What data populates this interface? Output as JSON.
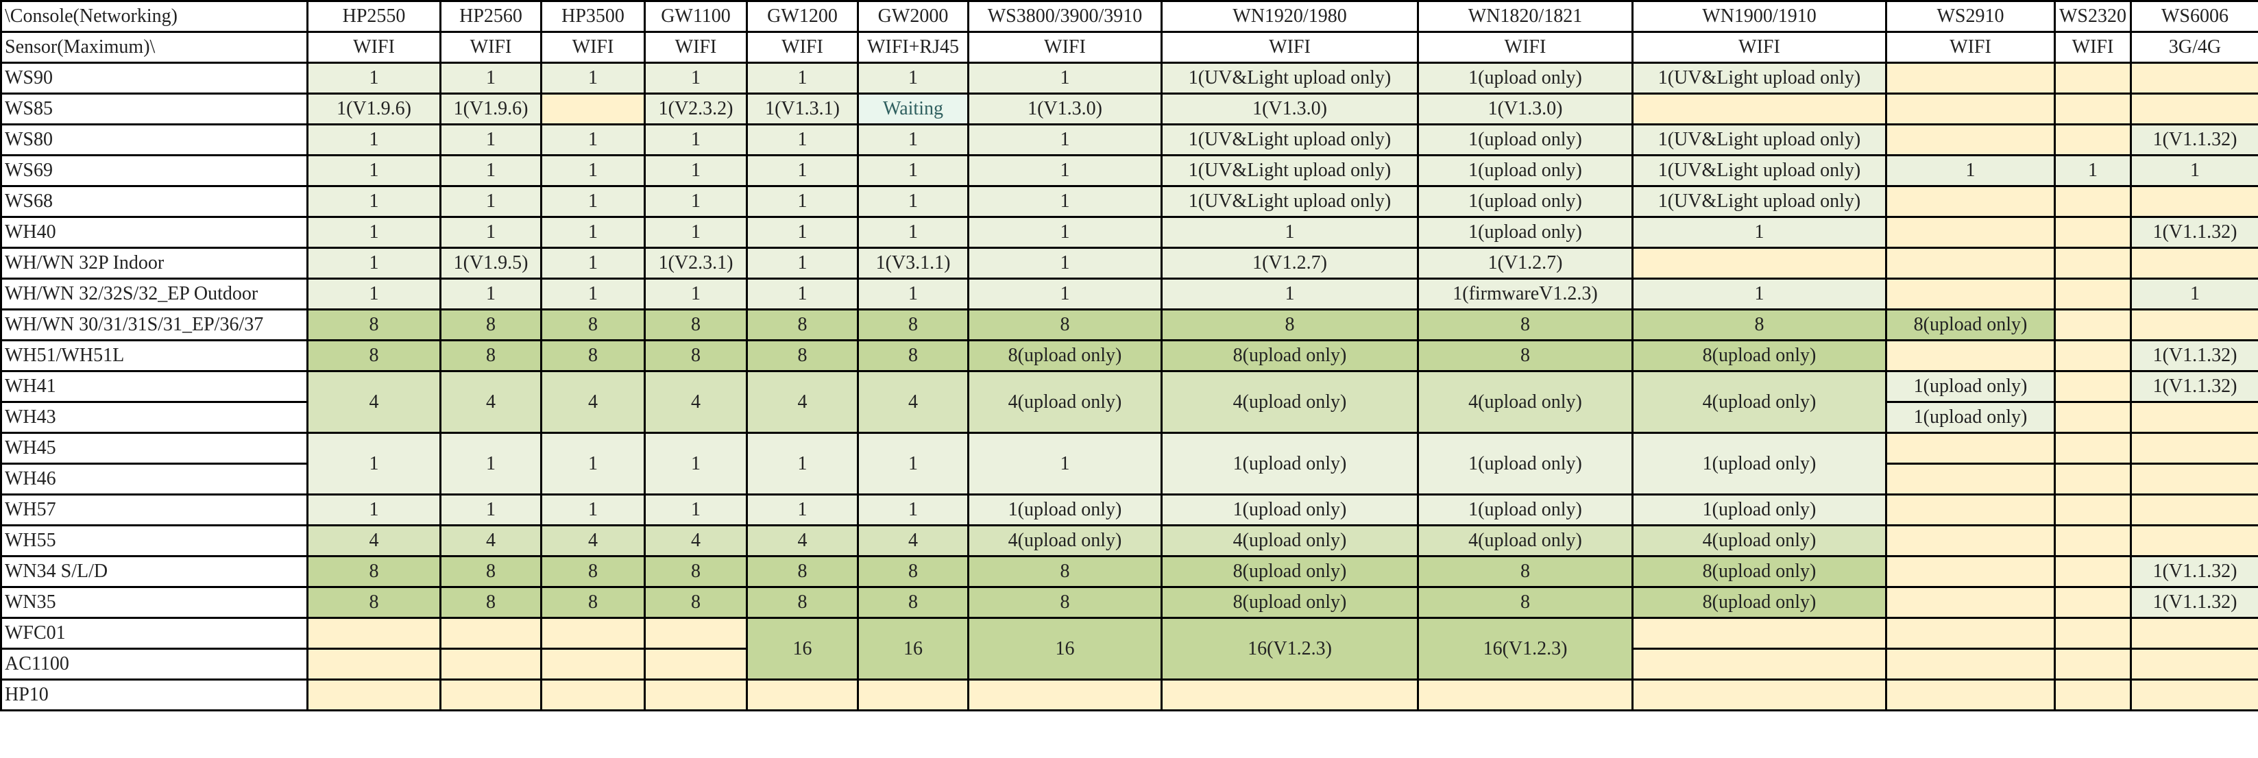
{
  "header": {
    "corner_top": "\\Console(Networking)",
    "corner_bottom": "Sensor(Maximum)\\",
    "consoles": [
      "HP2550",
      "HP2560",
      "HP3500",
      "GW1100",
      "GW1200",
      "GW2000",
      "WS3800/3900/3910",
      "WN1920/1980",
      "WN1820/1821",
      "WN1900/1910",
      "WS2910",
      "WS2320",
      "WS6006"
    ],
    "connections": [
      "WIFI",
      "WIFI",
      "WIFI",
      "WIFI",
      "WIFI",
      "WIFI+RJ45",
      "WIFI",
      "WIFI",
      "WIFI",
      "WIFI",
      "WIFI",
      "WIFI",
      "3G/4G"
    ]
  },
  "colors": {
    "light": "#EBF1DE",
    "medium": "#D8E4BC",
    "dark": "#C4D79B",
    "unsupported": "#FFF2CC",
    "waiting": "#EAF6EE"
  },
  "rows": [
    {
      "label": "WS90",
      "cells": [
        {
          "v": "1",
          "c": "l"
        },
        {
          "v": "1",
          "c": "l"
        },
        {
          "v": "1",
          "c": "l"
        },
        {
          "v": "1",
          "c": "l"
        },
        {
          "v": "1",
          "c": "l"
        },
        {
          "v": "1",
          "c": "l"
        },
        {
          "v": "1",
          "c": "l"
        },
        {
          "v": "1(UV&Light upload only)",
          "c": "l"
        },
        {
          "v": "1(upload only)",
          "c": "l"
        },
        {
          "v": "1(UV&Light upload only)",
          "c": "l"
        },
        {
          "v": "",
          "c": "y"
        },
        {
          "v": "",
          "c": "y"
        },
        {
          "v": "",
          "c": "y"
        }
      ]
    },
    {
      "label": "WS85",
      "cells": [
        {
          "v": "1(V1.9.6)",
          "c": "l"
        },
        {
          "v": "1(V1.9.6)",
          "c": "l"
        },
        {
          "v": "",
          "c": "y"
        },
        {
          "v": "1(V2.3.2)",
          "c": "l"
        },
        {
          "v": "1(V1.3.1)",
          "c": "l"
        },
        {
          "v": "Waiting",
          "c": "w"
        },
        {
          "v": "1(V1.3.0)",
          "c": "l"
        },
        {
          "v": "1(V1.3.0)",
          "c": "l"
        },
        {
          "v": "1(V1.3.0)",
          "c": "l"
        },
        {
          "v": "",
          "c": "y"
        },
        {
          "v": "",
          "c": "y"
        },
        {
          "v": "",
          "c": "y"
        },
        {
          "v": "",
          "c": "y"
        }
      ]
    },
    {
      "label": "WS80",
      "cells": [
        {
          "v": "1",
          "c": "l"
        },
        {
          "v": "1",
          "c": "l"
        },
        {
          "v": "1",
          "c": "l"
        },
        {
          "v": "1",
          "c": "l"
        },
        {
          "v": "1",
          "c": "l"
        },
        {
          "v": "1",
          "c": "l"
        },
        {
          "v": "1",
          "c": "l"
        },
        {
          "v": "1(UV&Light upload only)",
          "c": "l"
        },
        {
          "v": "1(upload only)",
          "c": "l"
        },
        {
          "v": "1(UV&Light upload only)",
          "c": "l"
        },
        {
          "v": "",
          "c": "y"
        },
        {
          "v": "",
          "c": "y"
        },
        {
          "v": "1(V1.1.32)",
          "c": "l"
        }
      ]
    },
    {
      "label": "WS69",
      "cells": [
        {
          "v": "1",
          "c": "l"
        },
        {
          "v": "1",
          "c": "l"
        },
        {
          "v": "1",
          "c": "l"
        },
        {
          "v": "1",
          "c": "l"
        },
        {
          "v": "1",
          "c": "l"
        },
        {
          "v": "1",
          "c": "l"
        },
        {
          "v": "1",
          "c": "l"
        },
        {
          "v": "1(UV&Light upload only)",
          "c": "l"
        },
        {
          "v": "1(upload only)",
          "c": "l"
        },
        {
          "v": "1(UV&Light upload only)",
          "c": "l"
        },
        {
          "v": "1",
          "c": "l"
        },
        {
          "v": "1",
          "c": "l"
        },
        {
          "v": "1",
          "c": "l"
        }
      ]
    },
    {
      "label": "WS68",
      "cells": [
        {
          "v": "1",
          "c": "l"
        },
        {
          "v": "1",
          "c": "l"
        },
        {
          "v": "1",
          "c": "l"
        },
        {
          "v": "1",
          "c": "l"
        },
        {
          "v": "1",
          "c": "l"
        },
        {
          "v": "1",
          "c": "l"
        },
        {
          "v": "1",
          "c": "l"
        },
        {
          "v": "1(UV&Light upload only)",
          "c": "l"
        },
        {
          "v": "1(upload only)",
          "c": "l"
        },
        {
          "v": "1(UV&Light upload only)",
          "c": "l"
        },
        {
          "v": "",
          "c": "y"
        },
        {
          "v": "",
          "c": "y"
        },
        {
          "v": "",
          "c": "y"
        }
      ]
    },
    {
      "label": "WH40",
      "cells": [
        {
          "v": "1",
          "c": "l"
        },
        {
          "v": "1",
          "c": "l"
        },
        {
          "v": "1",
          "c": "l"
        },
        {
          "v": "1",
          "c": "l"
        },
        {
          "v": "1",
          "c": "l"
        },
        {
          "v": "1",
          "c": "l"
        },
        {
          "v": "1",
          "c": "l"
        },
        {
          "v": "1",
          "c": "l"
        },
        {
          "v": "1(upload only)",
          "c": "l"
        },
        {
          "v": "1",
          "c": "l"
        },
        {
          "v": "",
          "c": "y"
        },
        {
          "v": "",
          "c": "y"
        },
        {
          "v": "1(V1.1.32)",
          "c": "l"
        }
      ]
    },
    {
      "label": "WH/WN 32P Indoor",
      "cells": [
        {
          "v": "1",
          "c": "l"
        },
        {
          "v": "1(V1.9.5)",
          "c": "l"
        },
        {
          "v": "1",
          "c": "l"
        },
        {
          "v": "1(V2.3.1)",
          "c": "l"
        },
        {
          "v": "1",
          "c": "l"
        },
        {
          "v": "1(V3.1.1)",
          "c": "l"
        },
        {
          "v": "1",
          "c": "l"
        },
        {
          "v": "1(V1.2.7)",
          "c": "l"
        },
        {
          "v": "1(V1.2.7)",
          "c": "l"
        },
        {
          "v": "",
          "c": "y"
        },
        {
          "v": "",
          "c": "y"
        },
        {
          "v": "",
          "c": "y"
        },
        {
          "v": "",
          "c": "y"
        }
      ]
    },
    {
      "label": "WH/WN 32/32S/32_EP Outdoor",
      "cells": [
        {
          "v": "1",
          "c": "l"
        },
        {
          "v": "1",
          "c": "l"
        },
        {
          "v": "1",
          "c": "l"
        },
        {
          "v": "1",
          "c": "l"
        },
        {
          "v": "1",
          "c": "l"
        },
        {
          "v": "1",
          "c": "l"
        },
        {
          "v": "1",
          "c": "l"
        },
        {
          "v": "1",
          "c": "l"
        },
        {
          "v": "1(firmwareV1.2.3)",
          "c": "l"
        },
        {
          "v": "1",
          "c": "l"
        },
        {
          "v": "",
          "c": "y"
        },
        {
          "v": "",
          "c": "y"
        },
        {
          "v": "1",
          "c": "l"
        }
      ]
    },
    {
      "label": "WH/WN 30/31/31S/31_EP/36/37",
      "cells": [
        {
          "v": "8",
          "c": "d"
        },
        {
          "v": "8",
          "c": "d"
        },
        {
          "v": "8",
          "c": "d"
        },
        {
          "v": "8",
          "c": "d"
        },
        {
          "v": "8",
          "c": "d"
        },
        {
          "v": "8",
          "c": "d"
        },
        {
          "v": "8",
          "c": "d"
        },
        {
          "v": "8",
          "c": "d"
        },
        {
          "v": "8",
          "c": "d"
        },
        {
          "v": "8",
          "c": "d"
        },
        {
          "v": "8(upload only)",
          "c": "d"
        },
        {
          "v": "",
          "c": "y"
        },
        {
          "v": "",
          "c": "y"
        }
      ]
    },
    {
      "label": "WH51/WH51L",
      "cells": [
        {
          "v": "8",
          "c": "d"
        },
        {
          "v": "8",
          "c": "d"
        },
        {
          "v": "8",
          "c": "d"
        },
        {
          "v": "8",
          "c": "d"
        },
        {
          "v": "8",
          "c": "d"
        },
        {
          "v": "8",
          "c": "d"
        },
        {
          "v": "8(upload only)",
          "c": "d"
        },
        {
          "v": "8(upload only)",
          "c": "d"
        },
        {
          "v": "8",
          "c": "d"
        },
        {
          "v": "8(upload only)",
          "c": "d"
        },
        {
          "v": "",
          "c": "y"
        },
        {
          "v": "",
          "c": "y"
        },
        {
          "v": "1(V1.1.32)",
          "c": "l"
        }
      ]
    },
    {
      "label": "WH41",
      "cells": [
        {
          "v": "4",
          "c": "m",
          "rs": 2
        },
        {
          "v": "4",
          "c": "m",
          "rs": 2
        },
        {
          "v": "4",
          "c": "m",
          "rs": 2
        },
        {
          "v": "4",
          "c": "m",
          "rs": 2
        },
        {
          "v": "4",
          "c": "m",
          "rs": 2
        },
        {
          "v": "4",
          "c": "m",
          "rs": 2
        },
        {
          "v": "4(upload only)",
          "c": "m",
          "rs": 2
        },
        {
          "v": "4(upload only)",
          "c": "m",
          "rs": 2
        },
        {
          "v": "4(upload only)",
          "c": "m",
          "rs": 2
        },
        {
          "v": "4(upload only)",
          "c": "m",
          "rs": 2
        },
        {
          "v": "1(upload only)",
          "c": "l"
        },
        {
          "v": "",
          "c": "y"
        },
        {
          "v": "1(V1.1.32)",
          "c": "l"
        }
      ]
    },
    {
      "label": "WH43",
      "cells": [
        {
          "v": "1(upload only)",
          "c": "l"
        },
        {
          "v": "",
          "c": "y"
        },
        {
          "v": "",
          "c": "y"
        }
      ]
    },
    {
      "label": "WH45",
      "cells": [
        {
          "v": "1",
          "c": "l",
          "rs": 2
        },
        {
          "v": "1",
          "c": "l",
          "rs": 2
        },
        {
          "v": "1",
          "c": "l",
          "rs": 2
        },
        {
          "v": "1",
          "c": "l",
          "rs": 2
        },
        {
          "v": "1",
          "c": "l",
          "rs": 2
        },
        {
          "v": "1",
          "c": "l",
          "rs": 2
        },
        {
          "v": "1",
          "c": "l",
          "rs": 2
        },
        {
          "v": "1(upload only)",
          "c": "l",
          "rs": 2
        },
        {
          "v": "1(upload only)",
          "c": "l",
          "rs": 2
        },
        {
          "v": "1(upload only)",
          "c": "l",
          "rs": 2
        },
        {
          "v": "",
          "c": "y"
        },
        {
          "v": "",
          "c": "y"
        },
        {
          "v": "",
          "c": "y"
        }
      ]
    },
    {
      "label": "WH46",
      "cells": [
        {
          "v": "",
          "c": "y"
        },
        {
          "v": "",
          "c": "y"
        },
        {
          "v": "",
          "c": "y"
        }
      ]
    },
    {
      "label": "WH57",
      "cells": [
        {
          "v": "1",
          "c": "l"
        },
        {
          "v": "1",
          "c": "l"
        },
        {
          "v": "1",
          "c": "l"
        },
        {
          "v": "1",
          "c": "l"
        },
        {
          "v": "1",
          "c": "l"
        },
        {
          "v": "1",
          "c": "l"
        },
        {
          "v": "1(upload only)",
          "c": "l"
        },
        {
          "v": "1(upload only)",
          "c": "l"
        },
        {
          "v": "1(upload only)",
          "c": "l"
        },
        {
          "v": "1(upload only)",
          "c": "l"
        },
        {
          "v": "",
          "c": "y"
        },
        {
          "v": "",
          "c": "y"
        },
        {
          "v": "",
          "c": "y"
        }
      ]
    },
    {
      "label": "WH55",
      "cells": [
        {
          "v": "4",
          "c": "m"
        },
        {
          "v": "4",
          "c": "m"
        },
        {
          "v": "4",
          "c": "m"
        },
        {
          "v": "4",
          "c": "m"
        },
        {
          "v": "4",
          "c": "m"
        },
        {
          "v": "4",
          "c": "m"
        },
        {
          "v": "4(upload only)",
          "c": "m"
        },
        {
          "v": "4(upload only)",
          "c": "m"
        },
        {
          "v": "4(upload only)",
          "c": "m"
        },
        {
          "v": "4(upload only)",
          "c": "m"
        },
        {
          "v": "",
          "c": "y"
        },
        {
          "v": "",
          "c": "y"
        },
        {
          "v": "",
          "c": "y"
        }
      ]
    },
    {
      "label": "WN34 S/L/D",
      "cells": [
        {
          "v": "8",
          "c": "d"
        },
        {
          "v": "8",
          "c": "d"
        },
        {
          "v": "8",
          "c": "d"
        },
        {
          "v": "8",
          "c": "d"
        },
        {
          "v": "8",
          "c": "d"
        },
        {
          "v": "8",
          "c": "d"
        },
        {
          "v": "8",
          "c": "d"
        },
        {
          "v": "8(upload only)",
          "c": "d"
        },
        {
          "v": "8",
          "c": "d"
        },
        {
          "v": "8(upload only)",
          "c": "d"
        },
        {
          "v": "",
          "c": "y"
        },
        {
          "v": "",
          "c": "y"
        },
        {
          "v": "1(V1.1.32)",
          "c": "l"
        }
      ]
    },
    {
      "label": "WN35",
      "cells": [
        {
          "v": "8",
          "c": "d"
        },
        {
          "v": "8",
          "c": "d"
        },
        {
          "v": "8",
          "c": "d"
        },
        {
          "v": "8",
          "c": "d"
        },
        {
          "v": "8",
          "c": "d"
        },
        {
          "v": "8",
          "c": "d"
        },
        {
          "v": "8",
          "c": "d"
        },
        {
          "v": "8(upload only)",
          "c": "d"
        },
        {
          "v": "8",
          "c": "d"
        },
        {
          "v": "8(upload only)",
          "c": "d"
        },
        {
          "v": "",
          "c": "y"
        },
        {
          "v": "",
          "c": "y"
        },
        {
          "v": "1(V1.1.32)",
          "c": "l"
        }
      ]
    },
    {
      "label": "WFC01",
      "cells": [
        {
          "v": "",
          "c": "y"
        },
        {
          "v": "",
          "c": "y"
        },
        {
          "v": "",
          "c": "y"
        },
        {
          "v": "",
          "c": "y"
        },
        {
          "v": "16",
          "c": "d",
          "rs": 2
        },
        {
          "v": "16",
          "c": "d",
          "rs": 2
        },
        {
          "v": "16",
          "c": "d",
          "rs": 2
        },
        {
          "v": "16(V1.2.3)",
          "c": "d",
          "rs": 2
        },
        {
          "v": "16(V1.2.3)",
          "c": "d",
          "rs": 2
        },
        {
          "v": "",
          "c": "y"
        },
        {
          "v": "",
          "c": "y"
        },
        {
          "v": "",
          "c": "y"
        },
        {
          "v": "",
          "c": "y"
        }
      ]
    },
    {
      "label": "AC1100",
      "cells": [
        {
          "v": "",
          "c": "y"
        },
        {
          "v": "",
          "c": "y"
        },
        {
          "v": "",
          "c": "y"
        },
        {
          "v": "",
          "c": "y"
        },
        {
          "v": "",
          "c": "y"
        },
        {
          "v": "",
          "c": "y"
        },
        {
          "v": "",
          "c": "y"
        },
        {
          "v": "",
          "c": "y"
        }
      ]
    },
    {
      "label": "HP10",
      "cells": [
        {
          "v": "",
          "c": "y"
        },
        {
          "v": "",
          "c": "y"
        },
        {
          "v": "",
          "c": "y"
        },
        {
          "v": "",
          "c": "y"
        },
        {
          "v": "",
          "c": "y"
        },
        {
          "v": "",
          "c": "y"
        },
        {
          "v": "",
          "c": "y"
        },
        {
          "v": "",
          "c": "y"
        },
        {
          "v": "",
          "c": "y"
        },
        {
          "v": "",
          "c": "y"
        },
        {
          "v": "",
          "c": "y"
        },
        {
          "v": "",
          "c": "y"
        },
        {
          "v": "",
          "c": "y"
        }
      ]
    }
  ]
}
